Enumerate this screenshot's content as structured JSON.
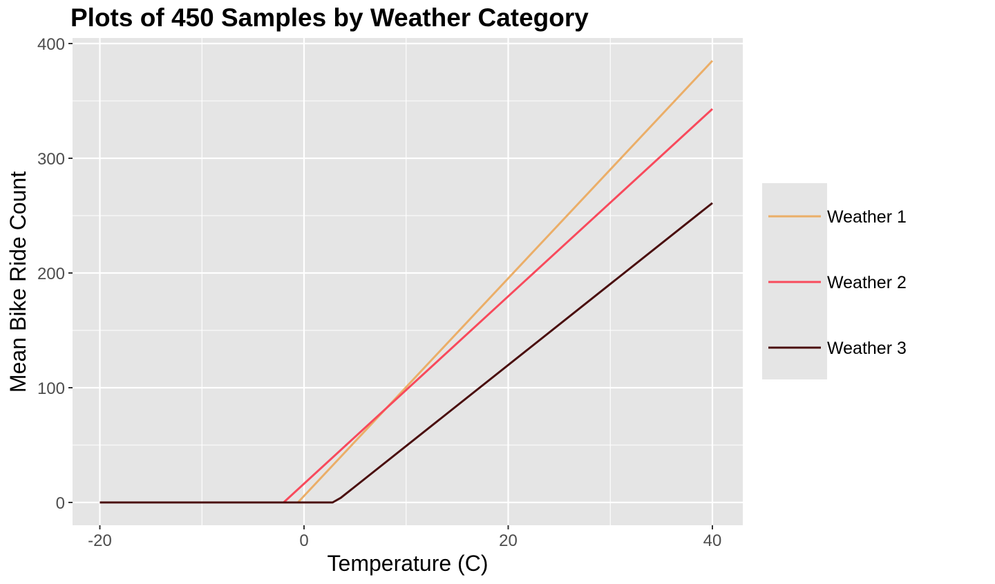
{
  "chart_data": {
    "type": "line",
    "title": "Plots of 450 Samples by Weather Category",
    "xlabel": "Temperature (C)",
    "ylabel": "Mean Bike Ride Count",
    "xlim": [
      -23,
      43
    ],
    "ylim": [
      -20,
      405
    ],
    "xticks": [
      -20,
      0,
      20,
      40
    ],
    "yticks": [
      0,
      100,
      200,
      300,
      400
    ],
    "xtick_labels": [
      "-20",
      "0",
      "20",
      "40"
    ],
    "ytick_labels": [
      "0",
      "100",
      "200",
      "300",
      "400"
    ],
    "grid": true,
    "legend_placement": "right",
    "series": [
      {
        "name": "Weather 1",
        "color": "#EBAE68",
        "points": [
          [
            -20,
            0
          ],
          [
            -0.6,
            0
          ],
          [
            40,
            385
          ]
        ]
      },
      {
        "name": "Weather 2",
        "color": "#F84A5C",
        "points": [
          [
            -20,
            0
          ],
          [
            -2.0,
            0
          ],
          [
            40,
            343
          ]
        ]
      },
      {
        "name": "Weather 3",
        "color": "#4A0E0E",
        "points": [
          [
            -20,
            0
          ],
          [
            2.8,
            0
          ],
          [
            3.6,
            4
          ],
          [
            40,
            261
          ]
        ]
      }
    ]
  }
}
